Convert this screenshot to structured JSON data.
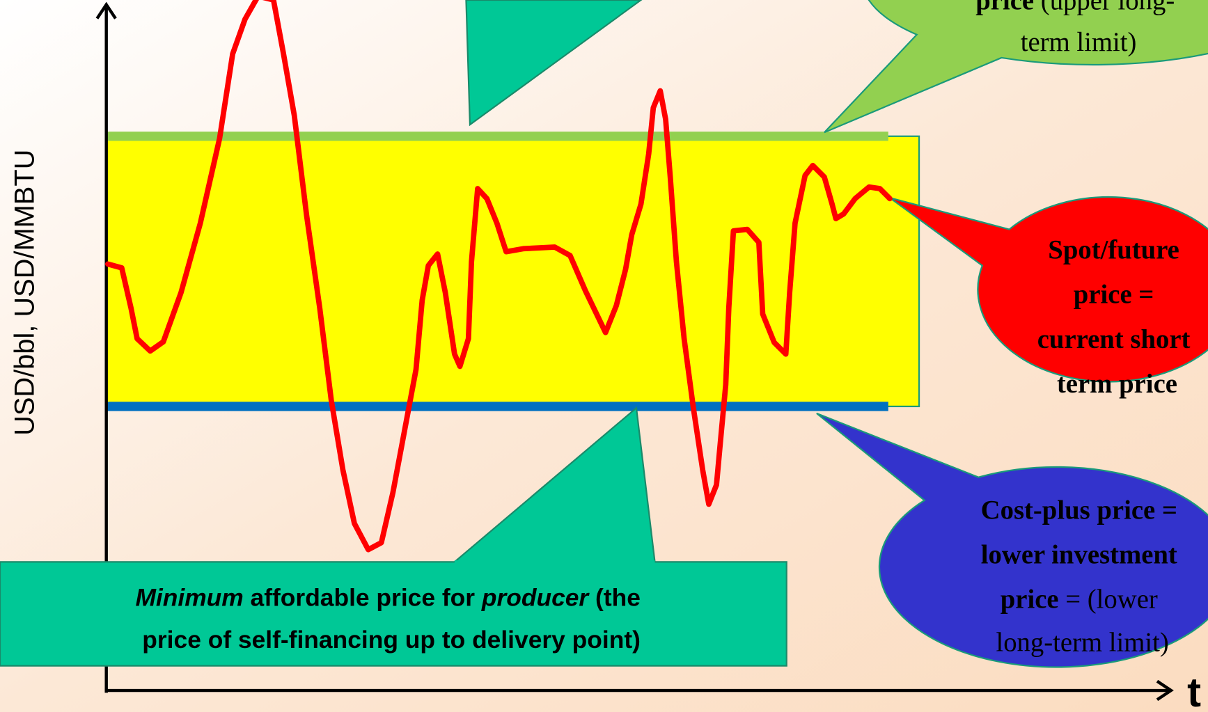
{
  "axis": {
    "y_label": "USD/bbl, USD/MMBTU",
    "x_label": "t"
  },
  "upper_callout": {
    "lines": [
      [
        "price",
        " (upper long-"
      ],
      [
        "term limit)"
      ]
    ]
  },
  "spot_callout": {
    "lines": [
      "Spot/future",
      "price =",
      "current short",
      "term price"
    ]
  },
  "cost_callout": {
    "lines": [
      [
        "Cost-plus price ="
      ],
      [
        "lower investment"
      ],
      [
        "price",
        " = (lower"
      ],
      [
        "long-term limit)"
      ]
    ]
  },
  "minimum_box": {
    "lines": [
      [
        "Minimum",
        " affordable price for ",
        "producer",
        " (the"
      ],
      [
        "price of self-financing up to delivery point)"
      ]
    ]
  }
}
